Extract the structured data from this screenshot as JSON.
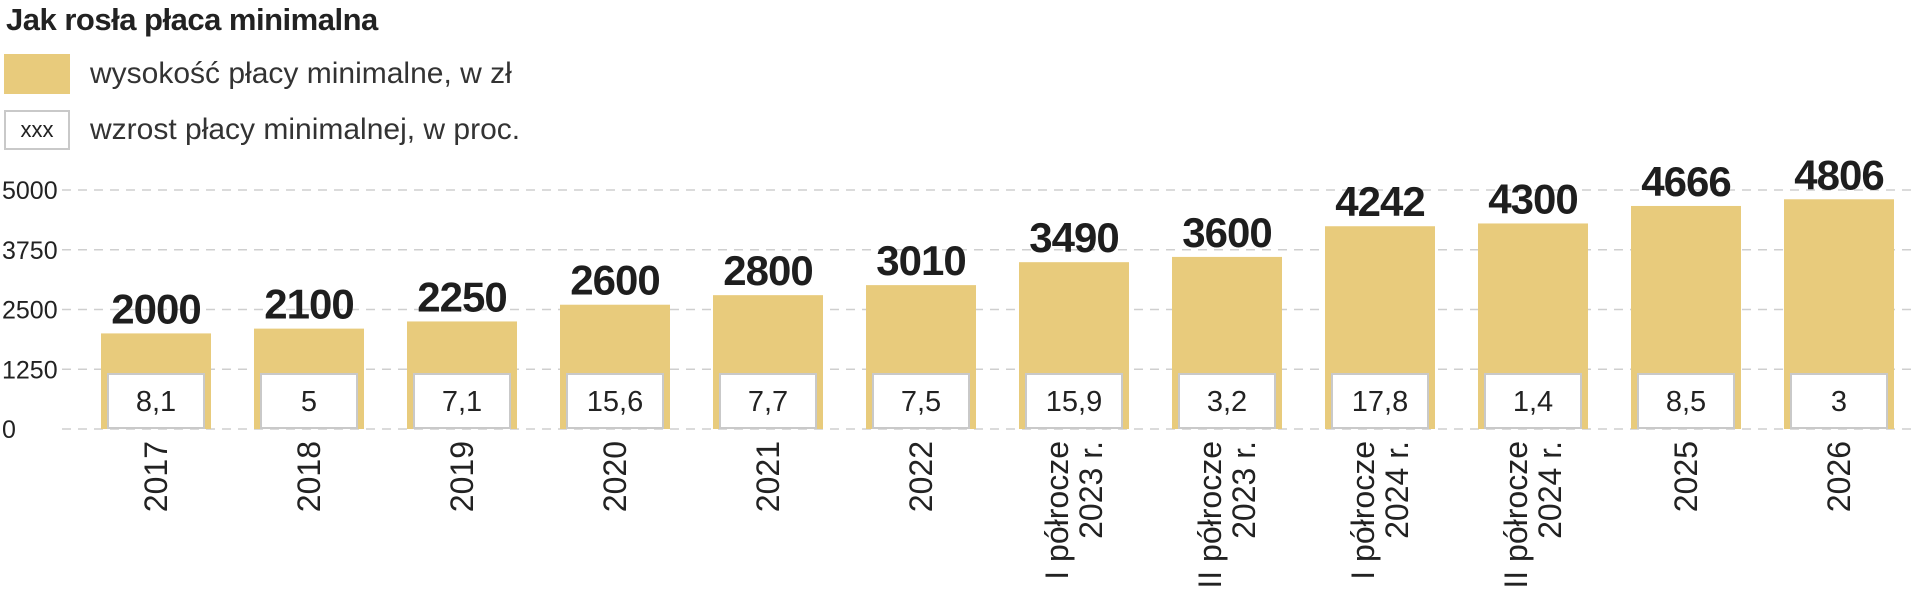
{
  "chart_data": {
    "type": "bar",
    "title": "Jak rosła płaca minimalna",
    "legend": [
      {
        "name": "wysokość płacy minimalne, w zł",
        "color": "#e8cb7c",
        "marker": "filled"
      },
      {
        "name": "wzrost płacy minimalnej, w proc.",
        "marker": "box",
        "marker_text": "xxx"
      }
    ],
    "categories": [
      "2017",
      "2018",
      "2019",
      "2020",
      "2021",
      "2022",
      "I półrocze 2023 r.",
      "II półrocze 2023 r.",
      "I półrocze 2024 r.",
      "II półrocze 2024 r.",
      "2025",
      "2026"
    ],
    "category_lines": [
      [
        "2017"
      ],
      [
        "2018"
      ],
      [
        "2019"
      ],
      [
        "2020"
      ],
      [
        "2021"
      ],
      [
        "2022"
      ],
      [
        "I półrocze",
        "2023 r."
      ],
      [
        "II półrocze",
        "2023 r."
      ],
      [
        "I półrocze",
        "2024 r."
      ],
      [
        "II półrocze",
        "2024 r."
      ],
      [
        "2025"
      ],
      [
        "2026"
      ]
    ],
    "series": [
      {
        "name": "wysokość płacy minimalne, w zł",
        "values": [
          2000,
          2100,
          2250,
          2600,
          2800,
          3010,
          3490,
          3600,
          4242,
          4300,
          4666,
          4806
        ]
      },
      {
        "name": "wzrost płacy minimalnej, w proc.",
        "labels": [
          "8,1",
          "5",
          "7,1",
          "15,6",
          "7,7",
          "7,5",
          "15,9",
          "3,2",
          "17,8",
          "1,4",
          "8,5",
          "3"
        ]
      }
    ],
    "value_labels": [
      "2000",
      "2100",
      "2250",
      "2600",
      "2800",
      "3010",
      "3490",
      "3600",
      "4242",
      "4300",
      "4666",
      "4806"
    ],
    "yticks": [
      0,
      1250,
      2500,
      3750,
      5000
    ],
    "ytick_labels": [
      "0",
      "1250",
      "2500",
      "3750",
      "5000"
    ],
    "ylim": [
      0,
      5000
    ],
    "grid": true,
    "colors": {
      "bar": "#e8cb7c",
      "grid": "#cfcfcf",
      "box_border": "#c9c9c9"
    }
  }
}
